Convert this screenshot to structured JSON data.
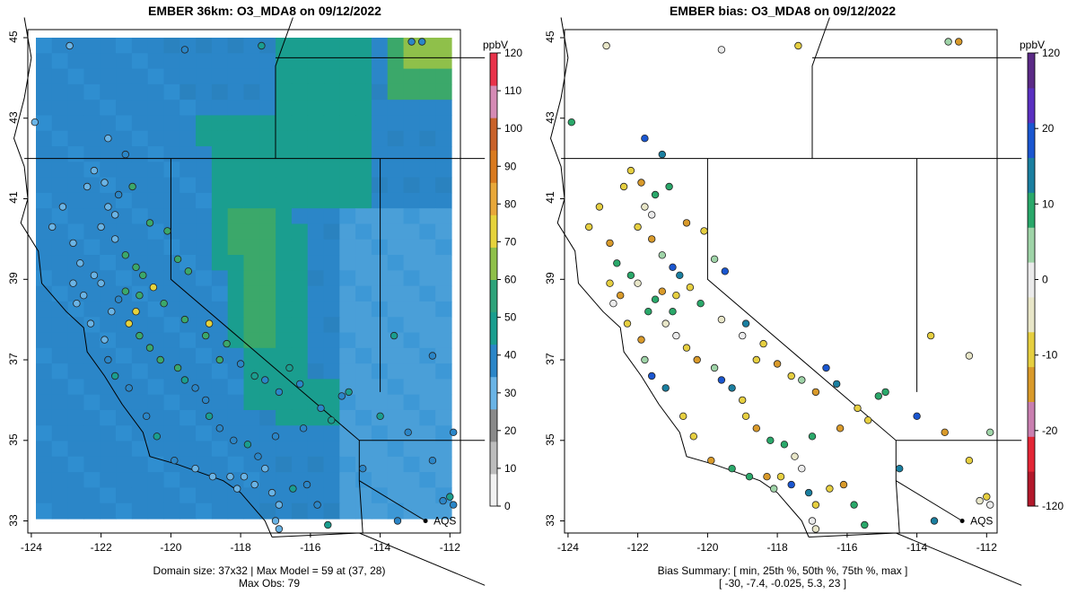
{
  "left_panel": {
    "title": "EMBER 36km: O3_MDA8 on 09/12/2022",
    "footer_line1": "Domain size: 37x32 | Max Model = 59 at (37, 28)",
    "footer_line2": "Max Obs: 79",
    "colorbar_unit": "ppbV",
    "colorbar_ticks": [
      "0",
      "10",
      "20",
      "30",
      "40",
      "50",
      "60",
      "70",
      "80",
      "90",
      "100",
      "110",
      "120"
    ],
    "colorbar_values": [
      0,
      10,
      20,
      30,
      40,
      50,
      60,
      70,
      80,
      90,
      100,
      110,
      120
    ],
    "colorbar_colors": [
      "#f2f2f2",
      "#bdbdbd",
      "#8a8a8a",
      "#6ab4e6",
      "#2b86c8",
      "#1a9e8f",
      "#2ea37a",
      "#8fc04a",
      "#e6d33c",
      "#e8a83a",
      "#d97a1f",
      "#c9622a",
      "#d58bb5",
      "#e8334a"
    ],
    "label_aqs": "AQS"
  },
  "right_panel": {
    "title": "EMBER bias: O3_MDA8 on 09/12/2022",
    "footer_line1": "Bias Summary: [ min, 25th %, 50th %, 75th %, max ]",
    "footer_line2": "[ -30,   -7.4,   -0.025,   5.3,   23 ]",
    "colorbar_unit": "ppbV",
    "colorbar_ticks": [
      "120",
      "20",
      "10",
      "0",
      "-10",
      "-20",
      "-120"
    ],
    "colorbar_values": [
      120,
      20,
      10,
      0,
      -10,
      -20,
      -120
    ],
    "colorbar_colors": [
      "#b2182b",
      "#e32636",
      "#c97fb0",
      "#d99a2a",
      "#e6cf40",
      "#e8e6c8",
      "#ebebeb",
      "#9fd4a8",
      "#2aa86a",
      "#1a7fa0",
      "#1a56d0",
      "#5a30c0",
      "#5b2a86"
    ],
    "label_aqs": "AQS"
  },
  "axes": {
    "x_ticks": [
      "-124",
      "-122",
      "-120",
      "-118",
      "-116",
      "-114",
      "-112"
    ],
    "y_ticks": [
      "33",
      "35",
      "37",
      "39",
      "41",
      "43",
      "45"
    ],
    "x_values": [
      -124,
      -122,
      -120,
      -118,
      -116,
      -114,
      -112
    ],
    "y_values": [
      33,
      35,
      37,
      39,
      41,
      43,
      45
    ],
    "lon_range": [
      -124.1,
      -111.7
    ],
    "lat_range": [
      32.7,
      45.2
    ]
  },
  "colors": {
    "ocean_model": "#2b86c8",
    "land_low": "#4a9fd8",
    "mid_green": "#1a9e8f",
    "high_green": "#3ba86a",
    "yellow_green": "#8fc04a"
  }
}
